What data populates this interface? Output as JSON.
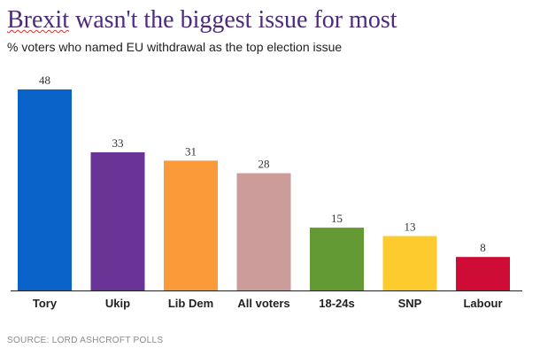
{
  "chart_data": {
    "type": "bar",
    "title": "Brexit wasn't the biggest issue for most",
    "title_underlined_word": "Brexit",
    "title_rest": " wasn't the biggest issue for most",
    "subtitle": "% voters who named EU withdrawal as the top election issue",
    "xlabel": "",
    "ylabel": "",
    "ylim": [
      0,
      48
    ],
    "grid": false,
    "legend": "none",
    "categories": [
      "Tory",
      "Ukip",
      "Lib Dem",
      "All voters",
      "18-24s",
      "SNP",
      "Labour"
    ],
    "values": [
      48,
      33,
      31,
      28,
      15,
      13,
      8
    ],
    "value_labels": [
      "48",
      "33",
      "31",
      "28",
      "15",
      "13",
      "8"
    ],
    "colors": [
      "#0a63c9",
      "#6a3496",
      "#fb9a38",
      "#cc9c9a",
      "#649a34",
      "#fdcb2d",
      "#cf0c35"
    ],
    "source": "SOURCE: LORD ASHCROFT POLLS"
  },
  "colors": {
    "title": "#4b2a7f",
    "baseline": "#222222",
    "source": "#8a8a8a"
  }
}
